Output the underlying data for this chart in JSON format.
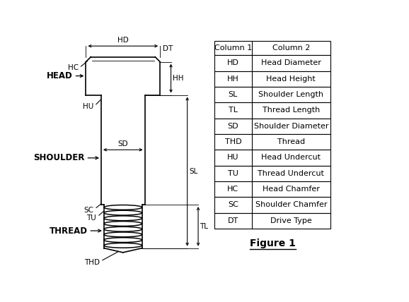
{
  "bg_color": "#ffffff",
  "table_col1_header": "Column 1",
  "table_col2_header": "Column 2",
  "table_rows": [
    [
      "HD",
      "Head Diameter"
    ],
    [
      "HH",
      "Head Height"
    ],
    [
      "SL",
      "Shoulder Length"
    ],
    [
      "TL",
      "Thread Length"
    ],
    [
      "SD",
      "Shoulder Diameter"
    ],
    [
      "THD",
      "Thread"
    ],
    [
      "HU",
      "Head Undercut"
    ],
    [
      "TU",
      "Thread Undercut"
    ],
    [
      "HC",
      "Head Chamfer"
    ],
    [
      "SC",
      "Shoulder Chamfer"
    ],
    [
      "DT",
      "Drive Type"
    ]
  ],
  "figure_caption": "Figure 1",
  "labels": {
    "HEAD": "HEAD",
    "SHOULDER": "SHOULDER",
    "THREAD": "THREAD",
    "HC": "HC",
    "HD": "HD",
    "DT": "DT",
    "HH": "HH",
    "HU": "HU",
    "SD": "SD",
    "SL": "SL",
    "SC": "SC",
    "TU": "TU",
    "TL": "TL",
    "THD": "THD"
  }
}
